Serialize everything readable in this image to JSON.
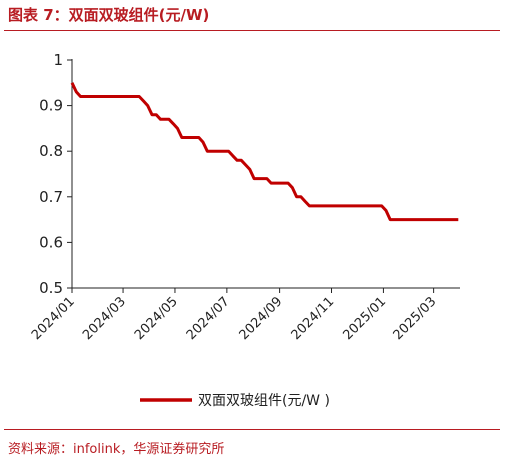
{
  "figure_title": "图表 7：双面双玻组件(元/W)",
  "source": "资料来源：infolink，华源证券研究所",
  "colors": {
    "accent": "#b81c22",
    "line": "#c00000",
    "axis": "#222222"
  },
  "chart_data": {
    "type": "line",
    "title": "",
    "xlabel": "",
    "ylabel": "",
    "ylim": [
      0.5,
      1.0
    ],
    "y_ticks": [
      "1",
      "0.9",
      "0.8",
      "0.7",
      "0.6",
      "0.5"
    ],
    "x_ticks": [
      "2024/01",
      "2024/03",
      "2024/05",
      "2024/07",
      "2024/09",
      "2024/11",
      "2025/01",
      "2025/03"
    ],
    "x_range": [
      "2024/01",
      "2025/04"
    ],
    "legend": {
      "position": "bottom-center",
      "label": "双面双玻组件(元/W )"
    },
    "series": [
      {
        "name": "双面双玻组件(元/W )",
        "x": [
          "2024/01/01",
          "2024/01/06",
          "2024/01/11",
          "2024/03/20",
          "2024/03/25",
          "2024/03/30",
          "2024/04/04",
          "2024/04/09",
          "2024/04/14",
          "2024/04/19",
          "2024/04/24",
          "2024/04/29",
          "2024/05/04",
          "2024/05/09",
          "2024/05/14",
          "2024/05/19",
          "2024/05/24",
          "2024/05/29",
          "2024/06/03",
          "2024/06/08",
          "2024/06/13",
          "2024/06/18",
          "2024/06/23",
          "2024/06/28",
          "2024/07/03",
          "2024/07/08",
          "2024/07/13",
          "2024/07/18",
          "2024/07/23",
          "2024/07/28",
          "2024/08/02",
          "2024/08/07",
          "2024/08/12",
          "2024/08/17",
          "2024/08/22",
          "2024/08/27",
          "2024/09/01",
          "2024/09/06",
          "2024/09/11",
          "2024/09/16",
          "2024/09/21",
          "2024/09/26",
          "2024/10/01",
          "2024/10/06",
          "2024/10/11",
          "2024/10/16",
          "2024/12/25",
          "2024/12/30",
          "2025/01/04",
          "2025/01/09",
          "2025/03/30"
        ],
        "y": [
          0.95,
          0.93,
          0.92,
          0.92,
          0.91,
          0.9,
          0.88,
          0.88,
          0.87,
          0.87,
          0.87,
          0.86,
          0.85,
          0.83,
          0.83,
          0.83,
          0.83,
          0.83,
          0.82,
          0.8,
          0.8,
          0.8,
          0.8,
          0.8,
          0.8,
          0.79,
          0.78,
          0.78,
          0.77,
          0.76,
          0.74,
          0.74,
          0.74,
          0.74,
          0.73,
          0.73,
          0.73,
          0.73,
          0.73,
          0.72,
          0.7,
          0.7,
          0.69,
          0.68,
          0.68,
          0.68,
          0.68,
          0.68,
          0.67,
          0.65,
          0.65
        ]
      }
    ]
  }
}
